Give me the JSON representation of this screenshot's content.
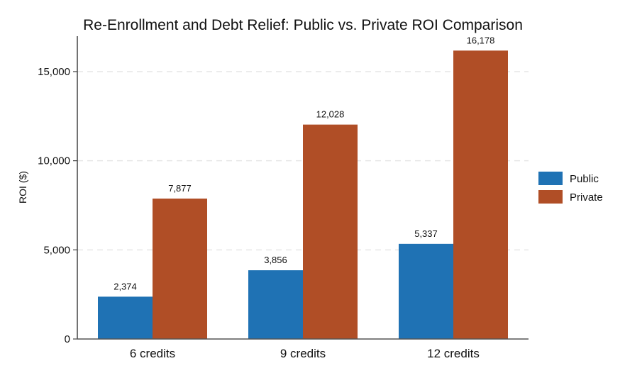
{
  "chart_data": {
    "type": "bar",
    "title": "Re-Enrollment and Debt Relief: Public vs. Private ROI Comparison",
    "xlabel": "",
    "ylabel": "ROI ($)",
    "categories": [
      "6 credits",
      "9 credits",
      "12 credits"
    ],
    "series": [
      {
        "name": "Public",
        "values": [
          2374,
          3856,
          5337
        ],
        "labels": [
          "2,374",
          "3,856",
          "5,337"
        ],
        "color": "#1f72b4"
      },
      {
        "name": "Private",
        "values": [
          7877,
          12028,
          16178
        ],
        "labels": [
          "7,877",
          "12,028",
          "16,178"
        ],
        "color": "#b04e26"
      }
    ],
    "ylim": [
      0,
      16987
    ],
    "yticks": [
      0,
      5000,
      10000,
      15000
    ],
    "ytick_labels": [
      "0",
      "5,000",
      "10,000",
      "15,000"
    ],
    "grid": "y dashed",
    "legend": "right"
  }
}
